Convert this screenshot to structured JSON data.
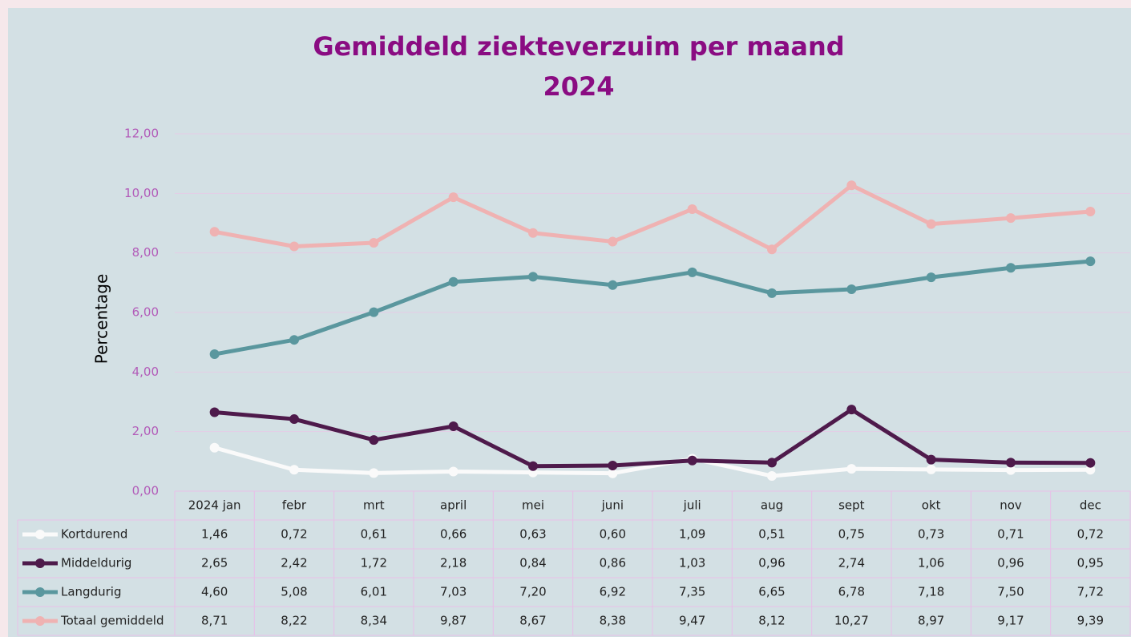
{
  "chart_data": {
    "type": "line",
    "title": "Gemiddeld ziekteverzuim per maand",
    "subtitle": "2024",
    "y_label": "Percentage",
    "categories": [
      "2024 jan",
      "febr",
      "mrt",
      "april",
      "mei",
      "juni",
      "juli",
      "aug",
      "sept",
      "okt",
      "nov",
      "dec"
    ],
    "series": [
      {
        "name": "Kortdurend",
        "color": "#fafafa",
        "values": [
          1.46,
          0.72,
          0.61,
          0.66,
          0.63,
          0.6,
          1.09,
          0.51,
          0.75,
          0.73,
          0.71,
          0.72
        ],
        "value_labels": [
          "1,46",
          "0,72",
          "0,61",
          "0,66",
          "0,63",
          "0,60",
          "1,09",
          "0,51",
          "0,75",
          "0,73",
          "0,71",
          "0,72"
        ]
      },
      {
        "name": "Middeldurig",
        "color": "#4e1a4b",
        "values": [
          2.65,
          2.42,
          1.72,
          2.18,
          0.84,
          0.86,
          1.03,
          0.96,
          2.74,
          1.06,
          0.96,
          0.95
        ],
        "value_labels": [
          "2,65",
          "2,42",
          "1,72",
          "2,18",
          "0,84",
          "0,86",
          "1,03",
          "0,96",
          "2,74",
          "1,06",
          "0,96",
          "0,95"
        ]
      },
      {
        "name": "Langdurig",
        "color": "#5a979e",
        "values": [
          4.6,
          5.08,
          6.01,
          7.03,
          7.2,
          6.92,
          7.35,
          6.65,
          6.78,
          7.18,
          7.5,
          7.72
        ],
        "value_labels": [
          "4,60",
          "5,08",
          "6,01",
          "7,03",
          "7,20",
          "6,92",
          "7,35",
          "6,65",
          "6,78",
          "7,18",
          "7,50",
          "7,72"
        ]
      },
      {
        "name": "Totaal gemiddeld",
        "color": "#efb2b2",
        "values": [
          8.71,
          8.22,
          8.34,
          9.87,
          8.67,
          8.38,
          9.47,
          8.12,
          10.27,
          8.97,
          9.17,
          9.39
        ],
        "value_labels": [
          "8,71",
          "8,22",
          "8,34",
          "9,87",
          "8,67",
          "8,38",
          "9,47",
          "8,12",
          "10,27",
          "8,97",
          "9,17",
          "9,39"
        ]
      }
    ],
    "ylim": [
      0,
      12
    ],
    "yticks": [
      {
        "value": 0,
        "label": "0,00"
      },
      {
        "value": 2,
        "label": "2,00"
      },
      {
        "value": 4,
        "label": "4,00"
      },
      {
        "value": 6,
        "label": "6,00"
      },
      {
        "value": 8,
        "label": "8,00"
      },
      {
        "value": 10,
        "label": "10,00"
      },
      {
        "value": 12,
        "label": "12,00"
      }
    ],
    "grid": true
  }
}
